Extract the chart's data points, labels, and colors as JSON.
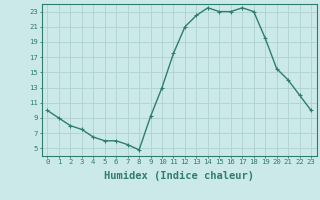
{
  "x": [
    0,
    1,
    2,
    3,
    4,
    5,
    6,
    7,
    8,
    9,
    10,
    11,
    12,
    13,
    14,
    15,
    16,
    17,
    18,
    19,
    20,
    21,
    22,
    23
  ],
  "y": [
    10,
    9,
    8,
    7.5,
    6.5,
    6,
    6,
    5.5,
    4.8,
    9.2,
    13,
    17.5,
    21,
    22.5,
    23.5,
    23,
    23,
    23.5,
    23,
    19.5,
    15.5,
    14,
    12,
    10
  ],
  "line_color": "#2e7d6e",
  "marker": "+",
  "bg_color": "#cce9e9",
  "grid_color": "#aed0d0",
  "xlabel": "Humidex (Indice chaleur)",
  "xlim": [
    -0.5,
    23.5
  ],
  "ylim": [
    4,
    24
  ],
  "yticks": [
    5,
    7,
    9,
    11,
    13,
    15,
    17,
    19,
    21,
    23
  ],
  "xticks": [
    0,
    1,
    2,
    3,
    4,
    5,
    6,
    7,
    8,
    9,
    10,
    11,
    12,
    13,
    14,
    15,
    16,
    17,
    18,
    19,
    20,
    21,
    22,
    23
  ],
  "tick_fontsize": 5.2,
  "label_fontsize": 7.5,
  "axis_color": "#2e7d6e",
  "spine_color": "#2e7d6e",
  "line_width": 1.0,
  "marker_size": 3.0
}
